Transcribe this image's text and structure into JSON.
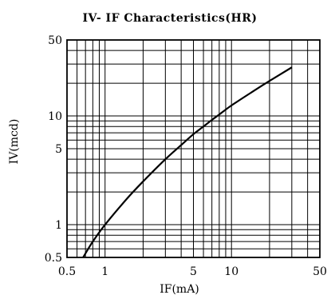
{
  "chart_data": {
    "type": "line",
    "title": "IV- IF Characteristics(HR)",
    "xlabel": "IF(mA)",
    "ylabel": "IV(mcd)",
    "x_scale": "log",
    "y_scale": "log",
    "xlim": [
      0.5,
      50
    ],
    "ylim": [
      0.5,
      50
    ],
    "x_ticks": [
      {
        "value": 0.5,
        "label": "0.5"
      },
      {
        "value": 1,
        "label": "1"
      },
      {
        "value": 5,
        "label": "5"
      },
      {
        "value": 10,
        "label": "10"
      },
      {
        "value": 50,
        "label": "50"
      }
    ],
    "y_ticks": [
      {
        "value": 0.5,
        "label": "0.5"
      },
      {
        "value": 1,
        "label": "1"
      },
      {
        "value": 5,
        "label": "5"
      },
      {
        "value": 10,
        "label": "10"
      },
      {
        "value": 50,
        "label": "50"
      }
    ],
    "grid": true,
    "x_grid": [
      0.5,
      0.6,
      0.7,
      0.8,
      0.9,
      1,
      2,
      3,
      4,
      5,
      6,
      7,
      8,
      9,
      10,
      20,
      30,
      40,
      50
    ],
    "y_grid": [
      0.5,
      0.6,
      0.7,
      0.8,
      0.9,
      1,
      2,
      3,
      4,
      5,
      6,
      7,
      8,
      9,
      10,
      20,
      30,
      40,
      50
    ],
    "series": [
      {
        "x": [
          0.67,
          0.8,
          1,
          1.5,
          2,
          3,
          4,
          5,
          6,
          7,
          8,
          10,
          15,
          20,
          30
        ],
        "y": [
          0.5,
          0.7,
          1.0,
          1.75,
          2.5,
          4.0,
          5.4,
          6.8,
          8.0,
          9.2,
          10.3,
          12.5,
          17.0,
          21.0,
          28.0
        ],
        "color": "#000000"
      }
    ]
  }
}
